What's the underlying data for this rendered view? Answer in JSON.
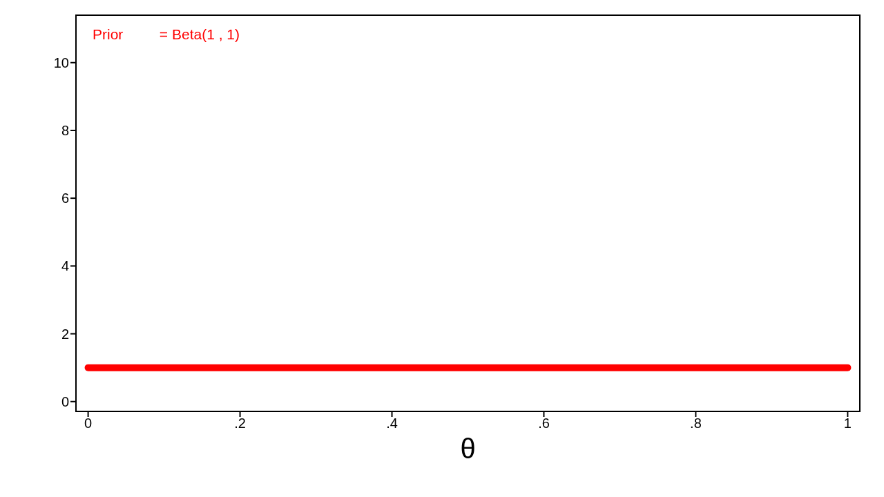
{
  "chart_data": {
    "type": "line",
    "xlabel": "θ",
    "annotations": [
      "Prior         = Beta(1 , 1)"
    ],
    "x": [
      0,
      1
    ],
    "series": [
      {
        "color": "#ff0000",
        "values": [
          1,
          1
        ]
      }
    ],
    "xlim": [
      -0.016,
      1.016
    ],
    "ylim": [
      -0.29,
      11.4
    ],
    "xticks": [
      0,
      {
        "value": 0.2,
        "label": ".2"
      },
      {
        "value": 0.4,
        "label": ".4"
      },
      {
        "value": 0.6,
        "label": ".6"
      },
      {
        "value": 0.8,
        "label": ".8"
      },
      1
    ],
    "yticks": [
      0,
      2,
      4,
      6,
      8,
      10
    ],
    "marker": "none",
    "line_style": "solid"
  }
}
